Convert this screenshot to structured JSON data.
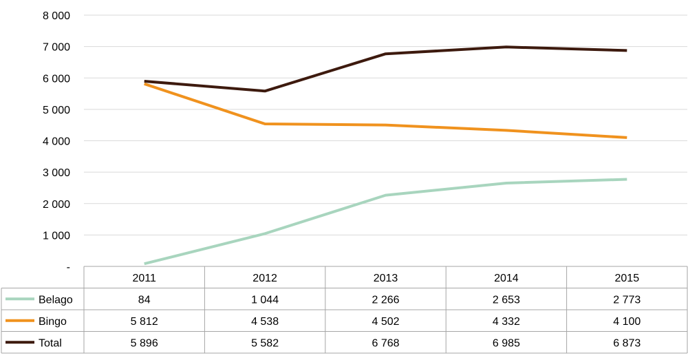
{
  "chart_data": {
    "type": "line",
    "categories": [
      "2011",
      "2012",
      "2013",
      "2014",
      "2015"
    ],
    "ylim": [
      0,
      8000
    ],
    "yticks": [
      0,
      1000,
      2000,
      3000,
      4000,
      5000,
      6000,
      7000,
      8000
    ],
    "ytick_labels": [
      "-",
      "1 000",
      "2 000",
      "3 000",
      "4 000",
      "5 000",
      "6 000",
      "7 000",
      "8 000"
    ],
    "grid": true,
    "legend": "data-table-below",
    "series": [
      {
        "name": "Belago",
        "color": "#a8d5be",
        "values": [
          84,
          1044,
          2266,
          2653,
          2773
        ],
        "labels": [
          "84",
          "1 044",
          "2 266",
          "2 653",
          "2 773"
        ]
      },
      {
        "name": "Bingo",
        "color": "#f0921e",
        "values": [
          5812,
          4538,
          4502,
          4332,
          4100
        ],
        "labels": [
          "5 812",
          "4 538",
          "4 502",
          "4 332",
          "4 100"
        ]
      },
      {
        "name": "Total",
        "color": "#3d1a0e",
        "values": [
          5896,
          5582,
          6768,
          6985,
          6873
        ],
        "labels": [
          "5 896",
          "5 582",
          "6 768",
          "6 985",
          "6 873"
        ]
      }
    ]
  }
}
